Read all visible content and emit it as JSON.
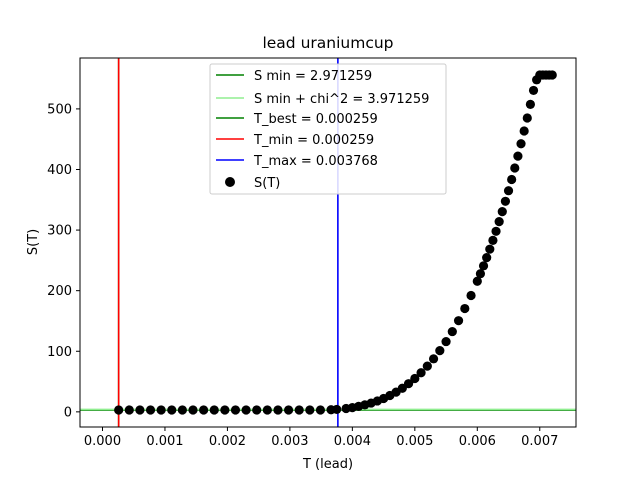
{
  "chart_data": {
    "type": "scatter",
    "title": "lead uraniumcup",
    "xlabel": "T (lead)",
    "ylabel": "S(T)",
    "xlim": [
      -0.00036,
      0.00758
    ],
    "ylim": [
      -25,
      584
    ],
    "xticks": [
      0.0,
      0.001,
      0.002,
      0.003,
      0.004,
      0.005,
      0.006,
      0.007
    ],
    "xtick_labels": [
      "0.000",
      "0.001",
      "0.002",
      "0.003",
      "0.004",
      "0.005",
      "0.006",
      "0.007"
    ],
    "yticks": [
      0,
      100,
      200,
      300,
      400,
      500
    ],
    "ytick_labels": [
      "0",
      "100",
      "200",
      "300",
      "400",
      "500"
    ],
    "grid": false,
    "legend_position": "upper center",
    "lines": {
      "s_min": {
        "label": "S min = 2.971259",
        "orientation": "horizontal",
        "value": 2.971259,
        "color": "#008000"
      },
      "s_min_chi": {
        "label": "S min + chi^2 = 3.971259",
        "orientation": "horizontal",
        "value": 3.971259,
        "color": "#90ee90"
      },
      "t_best": {
        "label": "T_best = 0.000259",
        "orientation": "vertical",
        "value": 0.000259,
        "color": "#008000"
      },
      "t_min": {
        "label": "T_min = 0.000259",
        "orientation": "vertical",
        "value": 0.000259,
        "color": "#ff0000"
      },
      "t_max": {
        "label": "T_max = 0.003768",
        "orientation": "vertical",
        "value": 0.003768,
        "color": "#0000ff"
      }
    },
    "series": [
      {
        "name": "S(T)",
        "color": "#000000",
        "x": [
          0.000259,
          0.000429,
          0.000599,
          0.000769,
          0.000939,
          0.001109,
          0.001279,
          0.001449,
          0.001619,
          0.001789,
          0.001959,
          0.002129,
          0.002299,
          0.002469,
          0.002639,
          0.002809,
          0.002979,
          0.003149,
          0.003319,
          0.003489,
          0.003659,
          0.00375,
          0.0039,
          0.004,
          0.0041,
          0.0042,
          0.0043,
          0.0044,
          0.0045,
          0.0046,
          0.0047,
          0.0048,
          0.0049,
          0.005,
          0.0051,
          0.0052,
          0.0053,
          0.0054,
          0.0055,
          0.0056,
          0.0057,
          0.0058,
          0.0059,
          0.006,
          0.00605,
          0.0061,
          0.00615,
          0.0062,
          0.00625,
          0.0063,
          0.00635,
          0.0064,
          0.00645,
          0.0065,
          0.00655,
          0.0066,
          0.00665,
          0.0067,
          0.00675,
          0.0068,
          0.00685,
          0.0069,
          0.00695,
          0.007,
          0.00705,
          0.0071,
          0.00715,
          0.0072
        ],
        "y": [
          3.0,
          3.0,
          3.0,
          3.0,
          3.0,
          3.0,
          3.0,
          3.0,
          3.0,
          3.0,
          3.0,
          3.0,
          3.0,
          3.0,
          3.0,
          3.0,
          3.0,
          3.0,
          3.0,
          3.0,
          3.5,
          4.0,
          5.5,
          7.0,
          9.0,
          11.5,
          14.5,
          18.0,
          22.0,
          27.0,
          32.5,
          39.0,
          46.5,
          55.0,
          64.5,
          75.5,
          87.5,
          101.0,
          116.0,
          132.5,
          150.5,
          170.5,
          192.0,
          215.5,
          228.0,
          241.0,
          254.5,
          268.5,
          283.0,
          298.0,
          314.0,
          330.5,
          347.5,
          365.0,
          383.5,
          402.5,
          422.0,
          442.5,
          463.5,
          485.0,
          507.5,
          530.5,
          548.0,
          556.0,
          556.0,
          556.0,
          556.0,
          556.0
        ]
      }
    ]
  }
}
